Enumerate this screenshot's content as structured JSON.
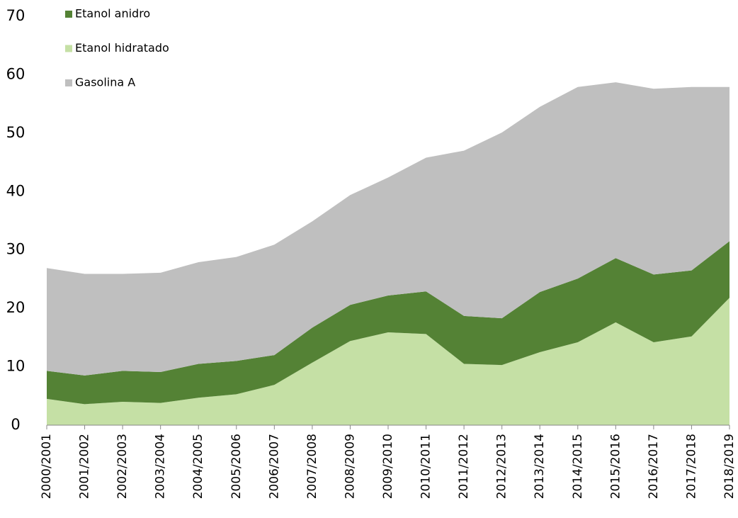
{
  "chart_data": {
    "type": "stacked_area",
    "categories": [
      "2000/2001",
      "2001/2002",
      "2002/2003",
      "2003/2004",
      "2004/2005",
      "2005/2006",
      "2006/2007",
      "2007/2008",
      "2008/2009",
      "2009/2010",
      "2010/2011",
      "2011/2012",
      "2012/2013",
      "2013/2014",
      "2014/2015",
      "2015/2016",
      "2016/2017",
      "2017/2018",
      "2018/2019"
    ],
    "series": [
      {
        "name": "Etanol hidratado",
        "color": "#c5e0a5",
        "values": [
          4.5,
          3.6,
          4.0,
          3.8,
          4.7,
          5.3,
          6.9,
          10.7,
          14.4,
          15.9,
          15.6,
          10.5,
          10.3,
          12.5,
          14.2,
          17.6,
          14.2,
          15.2,
          21.8
        ]
      },
      {
        "name": "Etanol anidro",
        "color": "#548235",
        "values": [
          4.8,
          4.9,
          5.3,
          5.3,
          5.8,
          5.7,
          5.1,
          6.0,
          6.2,
          6.3,
          7.3,
          8.2,
          8.0,
          10.3,
          10.9,
          11.0,
          11.6,
          11.3,
          9.7
        ]
      },
      {
        "name": "Gasolina A",
        "color": "#bfbfbf",
        "values": [
          17.6,
          17.4,
          16.6,
          17.0,
          17.4,
          17.8,
          18.9,
          18.2,
          18.8,
          20.2,
          22.9,
          28.3,
          31.8,
          31.7,
          32.8,
          30.1,
          31.8,
          31.4,
          26.4
        ]
      }
    ],
    "ylim": [
      0,
      70
    ],
    "yticks": [
      0,
      10,
      20,
      30,
      40,
      50,
      60,
      70
    ],
    "grid": false
  }
}
